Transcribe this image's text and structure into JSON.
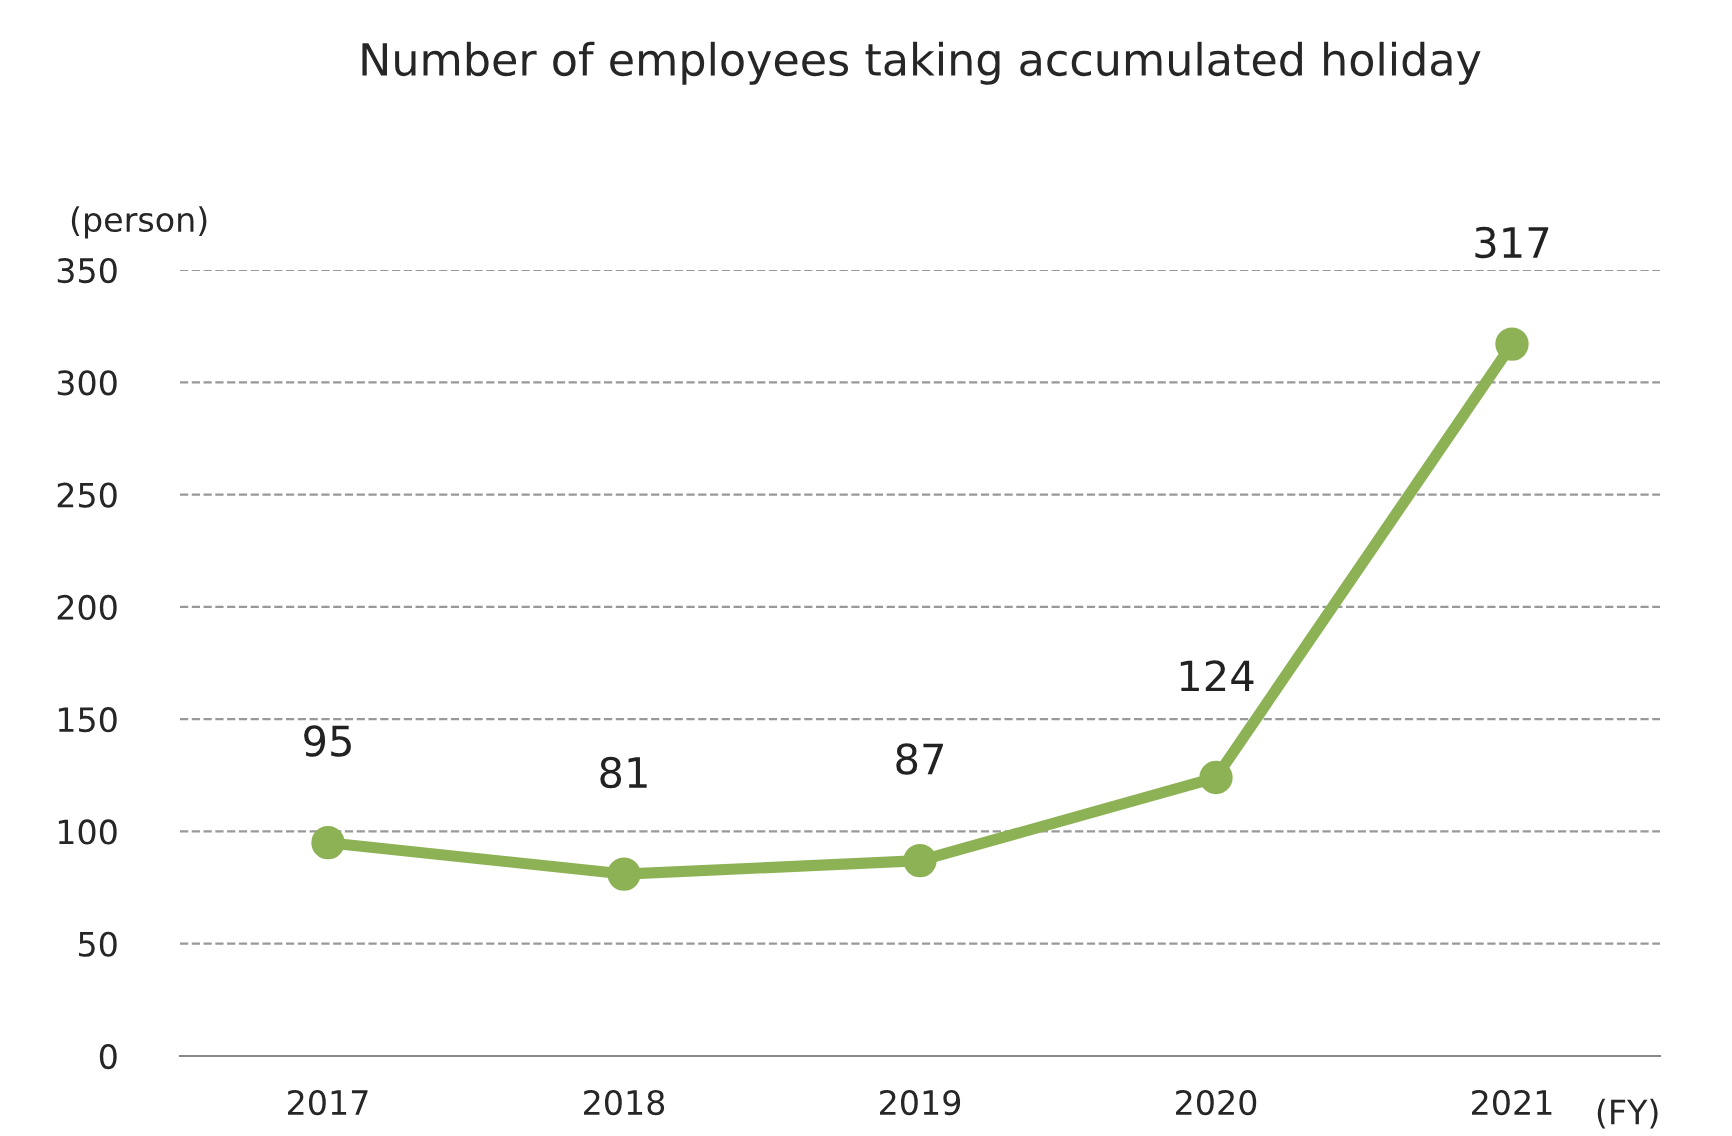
{
  "chart_data": {
    "type": "line",
    "title": "Number of employees taking accumulated holiday",
    "ylabel": "(person)",
    "xlabel": "(FY)",
    "categories": [
      "2017",
      "2018",
      "2019",
      "2020",
      "2021"
    ],
    "series": [
      {
        "color": "#8db255",
        "values": [
          95,
          81,
          87,
          124,
          317
        ]
      }
    ],
    "ylim": [
      0,
      350
    ],
    "yticks": [
      0,
      50,
      100,
      150,
      200,
      250,
      300,
      350
    ],
    "grid": "y",
    "legend": false,
    "marker": "circle",
    "line_style": "solid",
    "data_labels": true
  }
}
